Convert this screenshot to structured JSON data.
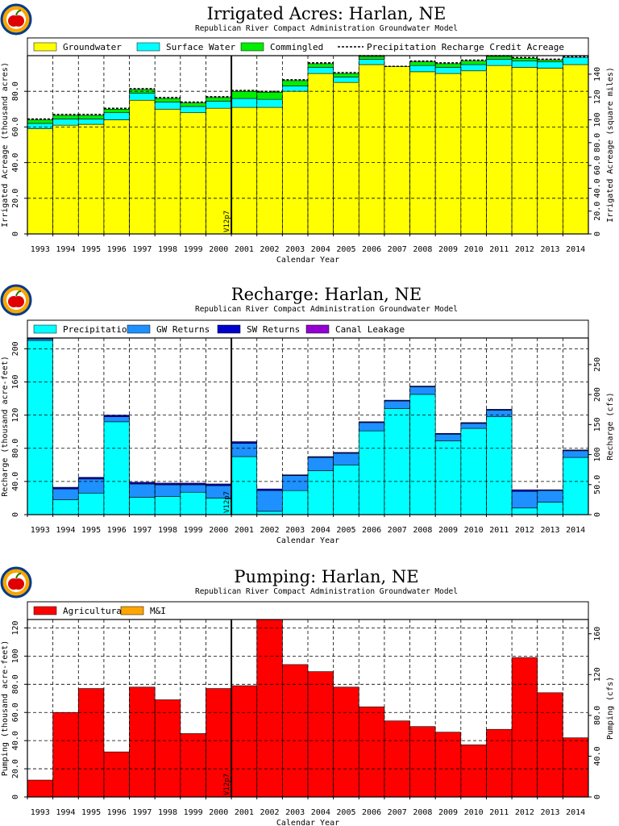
{
  "charts": [
    {
      "title": "Irrigated Acres: Harlan, NE",
      "subtitle": "Republican River Compact Administration Groundwater Model",
      "xlabel": "Calendar Year",
      "ylabel_left": "Irrigated Acreage (thousand acres)",
      "ylabel_right": "Irrigated Acreage (square miles)",
      "annotation": "V12p7"
    },
    {
      "title": "Recharge: Harlan, NE",
      "subtitle": "Republican River Compact Administration Groundwater Model",
      "xlabel": "Calendar Year",
      "ylabel_left": "Recharge (thousand acre-feet)",
      "ylabel_right": "Recharge (cfs)",
      "annotation": "V12p7"
    },
    {
      "title": "Pumping: Harlan, NE",
      "subtitle": "Republican River Compact Administration Groundwater Model",
      "xlabel": "Calendar Year",
      "ylabel_left": "Pumping (thousand acre-feet)",
      "ylabel_right": "Pumping (cfs)",
      "annotation": "V12p7"
    }
  ],
  "colors": {
    "yellow": "#ffff00",
    "cyan": "#00ffff",
    "green": "#00ee00",
    "blue": "#1e90ff",
    "darkblue": "#0000cd",
    "purple": "#9400d3",
    "red": "#ff0000",
    "orange": "#ffa500"
  },
  "chart_data": [
    {
      "type": "area",
      "title": "Irrigated Acres: Harlan, NE",
      "subtitle": "Republican River Compact Administration Groundwater Model",
      "xlabel": "Calendar Year",
      "ylabel": "Irrigated Acreage (thousand acres)",
      "ylabel_right": "Irrigated Acreage (square miles)",
      "categories": [
        "1993",
        "1994",
        "1995",
        "1996",
        "1997",
        "1998",
        "1999",
        "2000",
        "2001",
        "2002",
        "2003",
        "2004",
        "2005",
        "2006",
        "2007",
        "2008",
        "2009",
        "2010",
        "2011",
        "2012",
        "2013",
        "2014"
      ],
      "ylim": [
        0,
        100
      ],
      "yticks": [
        "0",
        "20.0",
        "40.0",
        "60.0",
        "80.0"
      ],
      "right_ylim": [
        0,
        156.25
      ],
      "right_yticks": [
        "0",
        "20.0",
        "40.0",
        "60.0",
        "80.0",
        "100",
        "120",
        "140"
      ],
      "stacked": true,
      "grid": true,
      "legend_position": "top",
      "series": [
        {
          "name": "Groundwater",
          "color": "#ffff00",
          "values": [
            59,
            61,
            61.5,
            64,
            75,
            70,
            68,
            70.5,
            71,
            71,
            80,
            90,
            85,
            95,
            94,
            91,
            90,
            91.5,
            94.5,
            93.5,
            93,
            95
          ]
        },
        {
          "name": "Surface Water",
          "color": "#00ffff",
          "values": [
            3,
            3.5,
            3,
            4,
            4,
            4,
            3.5,
            4,
            5,
            4.5,
            3,
            3.5,
            3,
            3,
            0,
            3.5,
            3.5,
            3.5,
            3.5,
            3.5,
            3.5,
            4
          ]
        },
        {
          "name": "Commingled",
          "color": "#00ee00",
          "values": [
            2,
            2,
            2,
            2,
            2,
            2,
            2,
            2,
            4,
            4,
            3,
            2,
            2,
            1.5,
            0,
            2,
            2,
            2,
            1.5,
            1.5,
            1,
            0
          ]
        },
        {
          "name": "Precipitation Recharge Credit Acreage",
          "color": "#000000",
          "values": [
            0.5,
            0.5,
            0.5,
            0.5,
            0.5,
            0.5,
            0.5,
            0.5,
            0.5,
            0.5,
            0.5,
            0.5,
            0.5,
            0.5,
            0,
            0.5,
            0.5,
            0.5,
            0.5,
            0.5,
            0.5,
            0.5
          ],
          "style": "dashed"
        }
      ],
      "annotation": {
        "text": "V12p7",
        "year": 2001
      }
    },
    {
      "type": "area",
      "title": "Recharge: Harlan, NE",
      "subtitle": "Republican River Compact Administration Groundwater Model",
      "xlabel": "Calendar Year",
      "ylabel": "Recharge (thousand acre-feet)",
      "ylabel_right": "Recharge (cfs)",
      "categories": [
        "1993",
        "1994",
        "1995",
        "1996",
        "1997",
        "1998",
        "1999",
        "2000",
        "2001",
        "2002",
        "2003",
        "2004",
        "2005",
        "2006",
        "2007",
        "2008",
        "2009",
        "2010",
        "2011",
        "2012",
        "2013",
        "2014"
      ],
      "ylim": [
        0,
        213
      ],
      "yticks": [
        "0",
        "40.0",
        "80.0",
        "120",
        "160",
        "200"
      ],
      "right_ylim": [
        0,
        294.2
      ],
      "right_yticks": [
        "0",
        "50.0",
        "100",
        "150",
        "200",
        "250"
      ],
      "stacked": true,
      "grid": true,
      "legend_position": "top",
      "series": [
        {
          "name": "Precipitation",
          "color": "#00ffff",
          "values": [
            210,
            18,
            26,
            112,
            21,
            22,
            27,
            20,
            70,
            4,
            29,
            53,
            60,
            101,
            128,
            145,
            89,
            104,
            118,
            8,
            15,
            69
          ]
        },
        {
          "name": "GW Returns",
          "color": "#1e90ff",
          "values": [
            2,
            13,
            17,
            6,
            16,
            14,
            9,
            15,
            16,
            25,
            18,
            16,
            14,
            10,
            9,
            9,
            8,
            6,
            8,
            20,
            14,
            8
          ]
        },
        {
          "name": "SW Returns",
          "color": "#0000cd",
          "values": [
            1,
            2,
            2,
            2,
            2,
            2,
            2,
            2,
            2,
            2,
            1,
            1,
            1,
            1,
            1,
            1,
            1,
            1,
            1,
            2,
            1,
            1
          ]
        },
        {
          "name": "Canal Leakage",
          "color": "#9400d3",
          "values": [
            0,
            0,
            0,
            0,
            0,
            0,
            0,
            0,
            0,
            0,
            0,
            0,
            0,
            0,
            0,
            0,
            0,
            0,
            0,
            0,
            0,
            0
          ]
        }
      ],
      "annotation": {
        "text": "V12p7",
        "year": 2001
      }
    },
    {
      "type": "area",
      "title": "Pumping: Harlan, NE",
      "subtitle": "Republican River Compact Administration Groundwater Model",
      "xlabel": "Calendar Year",
      "ylabel": "Pumping (thousand acre-feet)",
      "ylabel_right": "Pumping (cfs)",
      "categories": [
        "1993",
        "1994",
        "1995",
        "1996",
        "1997",
        "1998",
        "1999",
        "2000",
        "2001",
        "2002",
        "2003",
        "2004",
        "2005",
        "2006",
        "2007",
        "2008",
        "2009",
        "2010",
        "2011",
        "2012",
        "2013",
        "2014"
      ],
      "ylim": [
        0,
        126
      ],
      "yticks": [
        "0",
        "20.0",
        "40.0",
        "60.0",
        "80.0",
        "100",
        "120"
      ],
      "right_ylim": [
        0,
        174
      ],
      "right_yticks": [
        "0",
        "40.0",
        "80.0",
        "120",
        "160"
      ],
      "stacked": true,
      "grid": true,
      "legend_position": "top",
      "series": [
        {
          "name": "Agricultural",
          "color": "#ff0000",
          "values": [
            12,
            60,
            77,
            32,
            78,
            69,
            45,
            77,
            79,
            126,
            94,
            89,
            78,
            64,
            54,
            50,
            46,
            37,
            48,
            99,
            74,
            42
          ]
        },
        {
          "name": "M&I",
          "color": "#ffa500",
          "values": [
            0,
            0,
            0,
            0,
            0,
            0,
            0,
            0,
            0,
            0,
            0,
            0,
            0,
            0,
            0,
            0,
            0,
            0,
            0,
            0,
            0,
            0
          ]
        }
      ],
      "annotation": {
        "text": "V12p7",
        "year": 2001
      }
    }
  ]
}
